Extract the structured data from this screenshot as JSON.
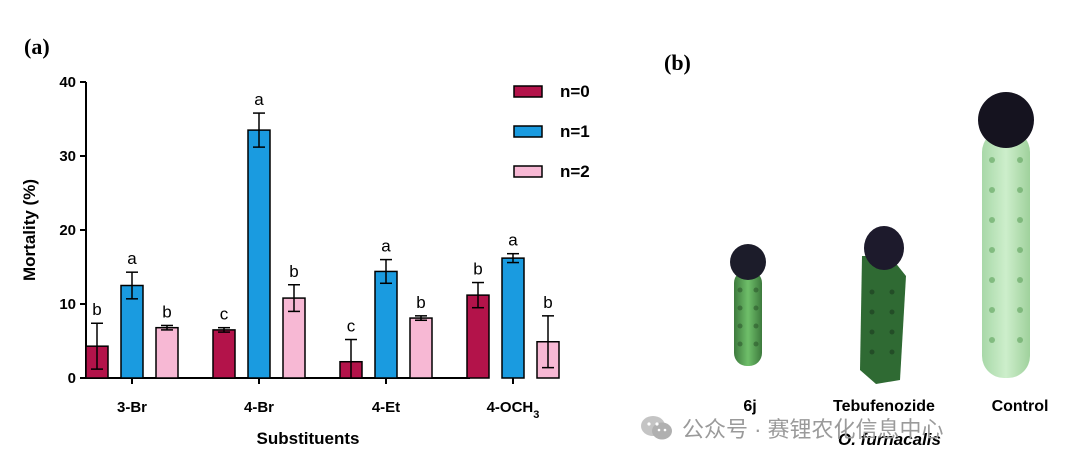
{
  "panel_a_label": "(a)",
  "panel_b_label": "(b)",
  "chart_data": {
    "type": "bar",
    "categories": [
      "3-Br",
      "4-Br",
      "4-Et",
      "4-OCH3"
    ],
    "category_labels": [
      {
        "main": "3-Br",
        "sub": ""
      },
      {
        "main": "4-Br",
        "sub": ""
      },
      {
        "main": "4-Et",
        "sub": ""
      },
      {
        "main": "4-OCH",
        "sub": "3"
      }
    ],
    "series": [
      {
        "name": "n=0",
        "color": "#b3134a",
        "values": [
          4.3,
          6.5,
          2.2,
          11.2
        ],
        "errors": [
          3.1,
          0.3,
          3.0,
          1.7
        ],
        "letters": [
          "b",
          "c",
          "c",
          "b"
        ]
      },
      {
        "name": "n=1",
        "color": "#1a9be0",
        "values": [
          12.5,
          33.5,
          14.4,
          16.2
        ],
        "errors": [
          1.8,
          2.3,
          1.6,
          0.6
        ],
        "letters": [
          "a",
          "a",
          "a",
          "a"
        ]
      },
      {
        "name": "n=2",
        "color": "#f7b8d4",
        "values": [
          6.8,
          10.8,
          8.1,
          4.9
        ],
        "errors": [
          0.3,
          1.8,
          0.3,
          3.5
        ],
        "letters": [
          "b",
          "b",
          "b",
          "b"
        ]
      }
    ],
    "xlabel": "Substituents",
    "ylabel": "Mortality (%)",
    "ylim": [
      0,
      40
    ],
    "yticks": [
      0,
      10,
      20,
      30,
      40
    ],
    "legend_position": "top-right",
    "grid": false
  },
  "larvae": {
    "labels": [
      "6j",
      "Tebufenozide",
      "Control"
    ],
    "species": "O. furnacalis"
  },
  "watermark": "公众号 · 赛锂农化信息中心"
}
